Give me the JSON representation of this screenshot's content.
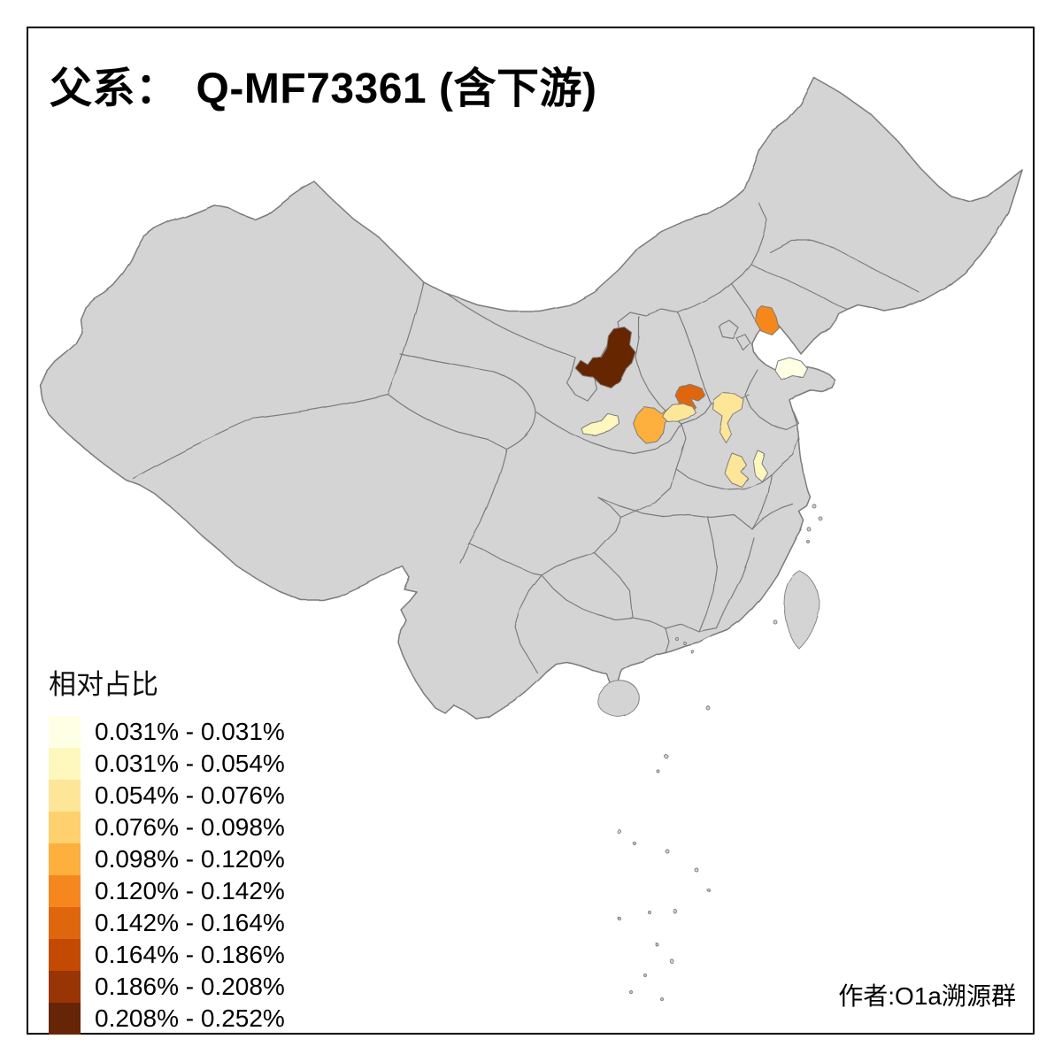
{
  "title": {
    "prefix": "父系：",
    "value": "Q-MF73361 (含下游)"
  },
  "legend": {
    "title": "相对占比",
    "items": [
      {
        "label": "0.031% - 0.031%",
        "color": "#FFFFE5"
      },
      {
        "label": "0.031% - 0.054%",
        "color": "#FEF7BE"
      },
      {
        "label": "0.054% - 0.076%",
        "color": "#FEE699"
      },
      {
        "label": "0.076% - 0.098%",
        "color": "#FED16E"
      },
      {
        "label": "0.098% - 0.120%",
        "color": "#FDB03D"
      },
      {
        "label": "0.120% - 0.142%",
        "color": "#F5871E"
      },
      {
        "label": "0.142% - 0.164%",
        "color": "#E0660D"
      },
      {
        "label": "0.164% - 0.186%",
        "color": "#C44903"
      },
      {
        "label": "0.186% - 0.208%",
        "color": "#993404"
      },
      {
        "label": "0.208% - 0.252%",
        "color": "#662506"
      }
    ]
  },
  "attribution": "作者:O1a溯源群",
  "map": {
    "land_color": "#D4D4D4",
    "boundary_color": "#7C7C7C",
    "background_color": "#FFFFFF",
    "regions": [
      {
        "id": "north-shaanxi",
        "range": "0.208% - 0.252%",
        "color": "#662506"
      },
      {
        "id": "west-liaoning",
        "range": "0.120% - 0.142%",
        "color": "#F5871E"
      },
      {
        "id": "southeast-shanxi",
        "range": "0.142% - 0.164%",
        "color": "#E0660D"
      },
      {
        "id": "central-shaanxi",
        "range": "0.098% - 0.120%",
        "color": "#FDB03D"
      },
      {
        "id": "southwest-shanxi",
        "range": "0.054% - 0.076%",
        "color": "#FEE699"
      },
      {
        "id": "north-henan",
        "range": "0.054% - 0.076%",
        "color": "#FEE699"
      },
      {
        "id": "east-gansu",
        "range": "0.031% - 0.054%",
        "color": "#FEF7BE"
      },
      {
        "id": "north-shandong",
        "range": "0.031% - 0.031%",
        "color": "#FFFFE5"
      },
      {
        "id": "central-henan",
        "range": "0.054% - 0.076%",
        "color": "#FEE699"
      },
      {
        "id": "east-henan",
        "range": "0.031% - 0.054%",
        "color": "#FEF7BE"
      }
    ]
  }
}
